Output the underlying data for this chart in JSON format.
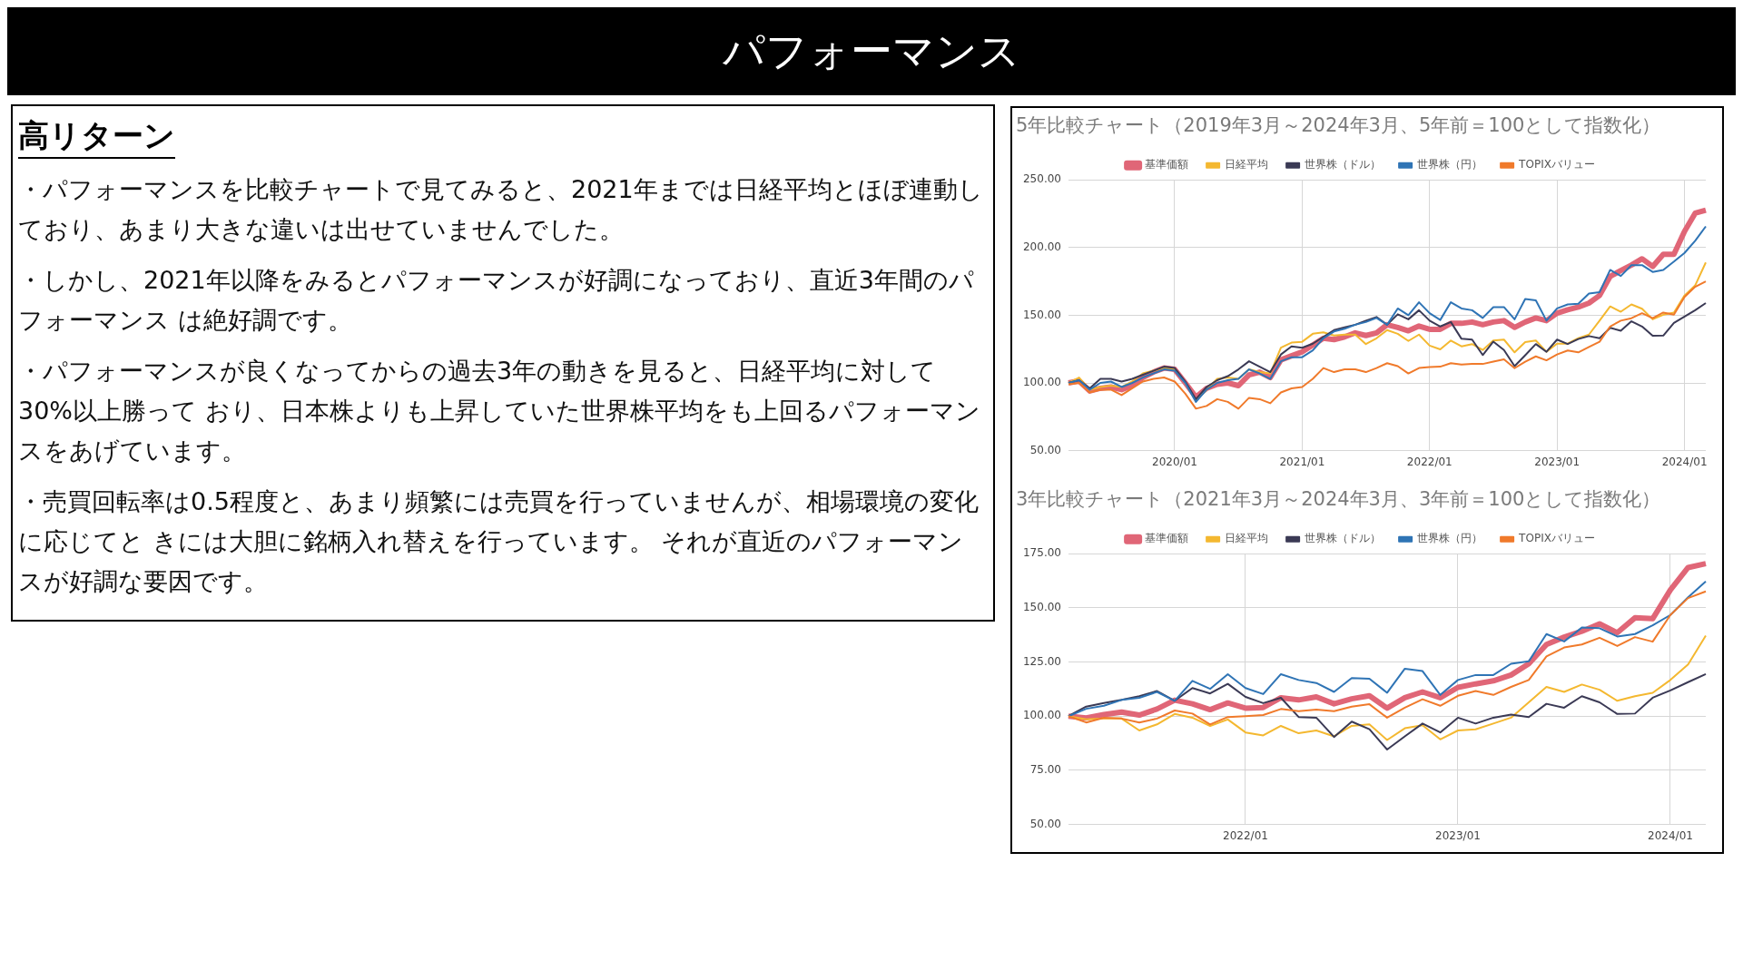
{
  "chart_data": [
    {
      "type": "other",
      "title": "パフォーマンス",
      "subtitle": "高リターン",
      "annotations": [
        "・パフォーマンスを比較チャートで見てみると、2021年までは日経平均とほぼ連動しており、あまり大きな違いは出せていませんでした。",
        "・しかし、2021年以降をみるとパフォーマンスが好調になっており、直近3年間のパフォーマンス は絶好調です。",
        "・パフォーマンスが良くなってからの過去3年の動きを見ると、日経平均に対して30%以上勝って おり、日本株よりも上昇していた世界株平均をも上回るパフォーマンスをあげています。",
        "・売買回転率は0.5程度と、あまり頻繁には売買を行っていませんが、相場環境の変化に応じてと きには大胆に銘柄入れ替えを行っています。 それが直近のパフォーマンスが好調な要因です。"
      ]
    },
    {
      "type": "line",
      "title": "5年比較チャート（2019年3月～2024年3月、5年前＝100として指数化）",
      "legend": "top",
      "grid": true,
      "marker": "none",
      "categories": [
        null,
        null,
        null,
        null,
        null,
        null,
        null,
        null,
        null,
        null,
        "2020/01",
        null,
        null,
        null,
        null,
        null,
        null,
        null,
        null,
        null,
        null,
        null,
        "2021/01",
        null,
        null,
        null,
        null,
        null,
        null,
        null,
        null,
        null,
        null,
        null,
        "2022/01",
        null,
        null,
        null,
        null,
        null,
        null,
        null,
        null,
        null,
        null,
        null,
        "2023/01",
        null,
        null,
        null,
        null,
        null,
        null,
        null,
        null,
        null,
        null,
        null,
        "2024/01",
        null,
        null
      ],
      "ylim": [
        50,
        250
      ],
      "yticks": [
        {
          "value": 50,
          "label": "50.00"
        },
        {
          "value": 100,
          "label": "100.00"
        },
        {
          "value": 150,
          "label": "150.00"
        },
        {
          "value": 200,
          "label": "200.00"
        },
        {
          "value": 250,
          "label": "250.00"
        }
      ],
      "series": [
        {
          "name": "基準価額",
          "color": "#e06677",
          "values": [
            100,
            101.5,
            94,
            96,
            97,
            95,
            98,
            104,
            108,
            111,
            110,
            100,
            89.6,
            96,
            99,
            100,
            98,
            106,
            108,
            104,
            117,
            120,
            123,
            128,
            133,
            132,
            134,
            137,
            135,
            137,
            143,
            141,
            138.5,
            142,
            139.6,
            139.6,
            144,
            144,
            145,
            143,
            145,
            146,
            141,
            145,
            148,
            146,
            151.5,
            154,
            156,
            159,
            164.6,
            178.7,
            183,
            187,
            191.7,
            186,
            195,
            195,
            212,
            225.4,
            227.6
          ]
        },
        {
          "name": "日経平均",
          "color": "#f4b830",
          "values": [
            100,
            104,
            95,
            97,
            98,
            97,
            101,
            107,
            109,
            111,
            110,
            100,
            87,
            95,
            103,
            104,
            103,
            110,
            108,
            107,
            126,
            129.8,
            130.4,
            136.3,
            137.4,
            135,
            135.7,
            135.7,
            128.7,
            133,
            139,
            136.3,
            131,
            135.7,
            127.6,
            124.8,
            131.3,
            127,
            128.7,
            124.3,
            131.3,
            132,
            122.6,
            130.2,
            131.3,
            123,
            129,
            129,
            133,
            135.7,
            146,
            156.5,
            152.6,
            158,
            154.8,
            147,
            150.4,
            152,
            164.6,
            172,
            189
          ]
        },
        {
          "name": "世界株（ドル）",
          "color": "#3b3a55",
          "values": [
            100,
            102,
            96,
            103,
            103,
            101,
            103,
            106,
            109,
            112,
            111,
            101,
            88,
            97,
            102,
            105,
            110,
            116,
            112,
            108,
            121,
            127,
            126,
            129,
            134,
            139,
            141,
            143,
            146,
            148.7,
            143,
            150.7,
            147,
            153.7,
            146,
            141.7,
            145,
            132.6,
            132,
            120.6,
            130.5,
            124.3,
            112.4,
            120.4,
            128.7,
            123,
            132,
            128.7,
            132.4,
            134.6,
            133,
            140.7,
            138.5,
            145.5,
            141.7,
            134.8,
            135,
            144.3,
            149,
            153.7,
            159
          ]
        },
        {
          "name": "世界株（円）",
          "color": "#2f74b5",
          "values": [
            100,
            102,
            95,
            100,
            101,
            97,
            100,
            104,
            107,
            110,
            109,
            100,
            86,
            95,
            100,
            102,
            103,
            110,
            107,
            103,
            116,
            119,
            119,
            124,
            133,
            138,
            140,
            143,
            145,
            148,
            143,
            155,
            150,
            159.6,
            151.5,
            146.5,
            159.6,
            155,
            153.7,
            148,
            156,
            156,
            147,
            162,
            161,
            146,
            155,
            158,
            158.5,
            166,
            167,
            183.5,
            179,
            187,
            187,
            182,
            183.5,
            189.6,
            196,
            205,
            215.6
          ]
        },
        {
          "name": "TOPIXバリュー",
          "color": "#f07a2b",
          "values": [
            99,
            100,
            93,
            95,
            95,
            91,
            96,
            101,
            103,
            104,
            101,
            92,
            81,
            83,
            88,
            86,
            81,
            89,
            88,
            85,
            93,
            96,
            97,
            103,
            111,
            108,
            110,
            110,
            108,
            111,
            114.6,
            112.4,
            107,
            111,
            111.7,
            112,
            114.6,
            113.5,
            114,
            114,
            115.7,
            117.4,
            110.9,
            115.7,
            119.6,
            116.7,
            121,
            124,
            122.6,
            126.5,
            130.4,
            141.7,
            146,
            147.8,
            151.5,
            147.8,
            152,
            150.4,
            163.5,
            171,
            175
          ]
        }
      ]
    },
    {
      "type": "line",
      "title": "3年比較チャート（2021年3月～2024年3月、3年前＝100として指数化）",
      "legend": "top",
      "grid": true,
      "marker": "none",
      "categories": [
        null,
        null,
        null,
        null,
        null,
        null,
        null,
        null,
        null,
        null,
        "2022/01",
        null,
        null,
        null,
        null,
        null,
        null,
        null,
        null,
        null,
        null,
        null,
        "2023/01",
        null,
        null,
        null,
        null,
        null,
        null,
        null,
        null,
        null,
        null,
        null,
        "2024/01",
        null,
        null
      ],
      "ylim": [
        50,
        175
      ],
      "yticks": [
        {
          "value": 50,
          "label": "50.00"
        },
        {
          "value": 75,
          "label": "75.00"
        },
        {
          "value": 100,
          "label": "100.00"
        },
        {
          "value": 125,
          "label": "125.00"
        },
        {
          "value": 150,
          "label": "150.00"
        },
        {
          "value": 175,
          "label": "175.00"
        }
      ],
      "series": [
        {
          "name": "基準価額",
          "color": "#e06677",
          "values": [
            100,
            99.2,
            100.7,
            101.9,
            100.5,
            103.3,
            107.4,
            105.7,
            103,
            106.1,
            103.7,
            104,
            108.5,
            107.5,
            108.9,
            105.7,
            108,
            109.4,
            103.7,
            108.5,
            111.2,
            108.5,
            113.3,
            114.9,
            116.3,
            119,
            124.2,
            133.1,
            136.5,
            139.2,
            142.6,
            138.5,
            145.4,
            145,
            158.3,
            168.6,
            170.4
          ]
        },
        {
          "name": "日経平均",
          "color": "#f4b830",
          "values": [
            100,
            98.5,
            98.9,
            98.9,
            93.4,
            96.2,
            101,
            99.3,
            95.5,
            98.5,
            92.5,
            91.1,
            95.5,
            92.1,
            93.4,
            90.7,
            95.5,
            96.2,
            89,
            94.4,
            95.8,
            89.3,
            93.4,
            93.9,
            96.6,
            99.3,
            106.4,
            113.5,
            111.2,
            114.6,
            112.2,
            107.1,
            109.2,
            110.8,
            116.7,
            123.9,
            137.2
          ]
        },
        {
          "name": "世界株（ドル）",
          "color": "#3b3a55",
          "values": [
            100,
            104.4,
            106.1,
            107.5,
            109.2,
            111.6,
            107.1,
            113,
            110.5,
            114.9,
            108.9,
            106,
            108.5,
            99.6,
            99.3,
            90.4,
            97.5,
            94,
            84.6,
            90.7,
            96.6,
            92.5,
            99.3,
            96.6,
            99.3,
            100.7,
            99.6,
            105.7,
            103.9,
            109.2,
            106.4,
            101,
            101.2,
            108.5,
            111.9,
            115.7,
            119.4
          ]
        },
        {
          "name": "世界株（円）",
          "color": "#2f74b5",
          "values": [
            100,
            103.4,
            104.8,
            107.5,
            108.5,
            111.2,
            107.1,
            116.3,
            112.6,
            119.4,
            113,
            110.2,
            119.4,
            116.7,
            115.3,
            111.2,
            117.6,
            117.3,
            110.8,
            121.9,
            120.8,
            109.8,
            116.7,
            119,
            119,
            124.2,
            125.3,
            137.9,
            134.5,
            140.9,
            140.6,
            136.8,
            137.9,
            141.9,
            146.7,
            154.9,
            162.2
          ]
        },
        {
          "name": "TOPIXバリュー",
          "color": "#f07a2b",
          "values": [
            100,
            97.1,
            99.3,
            98.9,
            97.1,
            98.9,
            102.6,
            101.2,
            96.2,
            99.6,
            100,
            100.5,
            103.3,
            102.3,
            103,
            102.3,
            104.4,
            105.5,
            99.3,
            103.9,
            107.8,
            104.8,
            109.4,
            111.6,
            109.8,
            113.5,
            116.7,
            127.6,
            131.7,
            133.1,
            136.2,
            132.4,
            136.5,
            134.4,
            146.7,
            154.5,
            157.6
          ]
        }
      ]
    }
  ]
}
